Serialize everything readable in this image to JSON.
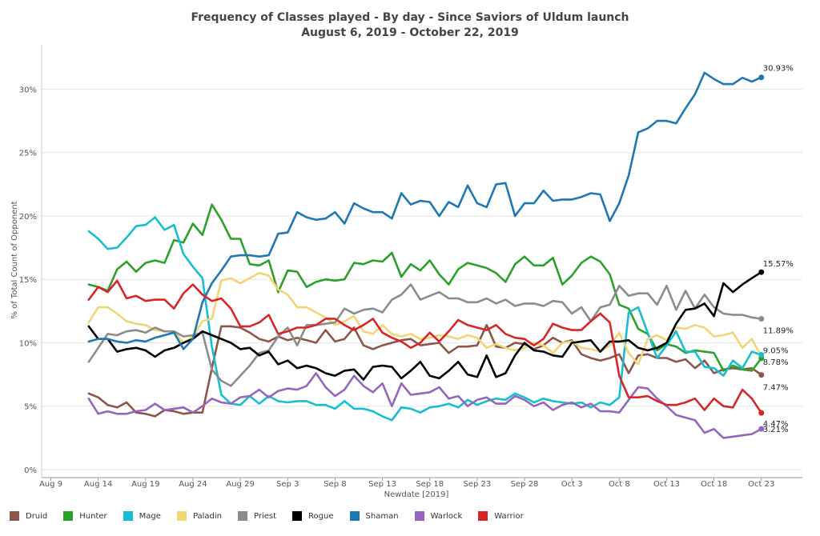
{
  "chart_data": {
    "type": "line",
    "title": "Frequency of Classes played - By day - Since Saviors of Uldum launch",
    "subtitle": "August 6, 2019 - October 22, 2019",
    "xlabel": "Newdate [2019]",
    "ylabel": "% of Total Count of Opponent",
    "x_ticks": [
      "Aug 9",
      "Aug 14",
      "Aug 19",
      "Aug 24",
      "Aug 29",
      "Sep 3",
      "Sep 8",
      "Sep 13",
      "Sep 18",
      "Sep 23",
      "Sep 28",
      "Oct 3",
      "Oct 8",
      "Oct 13",
      "Oct 18",
      "Oct 23"
    ],
    "y_ticks": [
      "0%",
      "5%",
      "10%",
      "15%",
      "20%",
      "25%",
      "30%"
    ],
    "ylim": [
      0,
      33.5
    ],
    "x_start": "Aug 13",
    "x_end": "Oct 22",
    "grid": "horizontal",
    "legend_position": "bottom",
    "series": [
      {
        "name": "Druid",
        "color": "#8c564b",
        "end_label": "7.47%",
        "values": [
          6.0,
          5.7,
          5.1,
          4.9,
          5.3,
          4.5,
          4.4,
          4.2,
          4.7,
          4.6,
          4.4,
          4.5,
          4.5,
          8.0,
          11.3,
          11.3,
          11.2,
          10.8,
          10.3,
          10.1,
          10.5,
          10.2,
          10.4,
          10.2,
          10.0,
          11.0,
          10.1,
          10.3,
          11.2,
          9.8,
          9.5,
          9.8,
          10.0,
          10.2,
          10.3,
          9.8,
          9.9,
          10.0,
          9.2,
          9.7,
          9.7,
          9.8,
          11.4,
          9.7,
          9.6,
          10.0,
          9.9,
          9.5,
          9.8,
          10.4,
          10.0,
          10.2,
          9.1,
          8.8,
          8.6,
          8.8,
          9.1,
          7.6,
          9.0,
          9.1,
          8.8,
          8.8,
          8.5,
          8.7,
          8.0,
          8.6,
          7.6,
          7.9,
          8.0,
          7.9,
          8.0,
          7.47
        ]
      },
      {
        "name": "Hunter",
        "color": "#2ca02c",
        "end_label": "8.78%",
        "values": [
          14.6,
          14.4,
          14.1,
          15.8,
          16.4,
          15.6,
          16.3,
          16.5,
          16.3,
          18.1,
          17.9,
          19.4,
          18.5,
          20.9,
          19.7,
          18.2,
          18.2,
          16.2,
          16.1,
          16.5,
          14.0,
          15.7,
          15.6,
          14.4,
          14.8,
          15.0,
          14.9,
          15.0,
          16.3,
          16.2,
          16.5,
          16.4,
          17.1,
          15.2,
          16.2,
          15.7,
          16.5,
          15.4,
          14.6,
          15.8,
          16.3,
          16.1,
          15.9,
          15.5,
          14.8,
          16.2,
          16.8,
          16.1,
          16.1,
          16.7,
          14.6,
          15.3,
          16.3,
          16.8,
          16.4,
          15.4,
          13.0,
          12.7,
          11.1,
          10.7,
          9.4,
          9.9,
          9.7,
          9.2,
          9.4,
          9.3,
          9.2,
          7.8,
          8.2,
          7.9,
          7.8,
          8.78
        ]
      },
      {
        "name": "Mage",
        "color": "#17becf",
        "end_label": "9.05%",
        "values": [
          18.8,
          18.2,
          17.4,
          17.5,
          18.3,
          19.2,
          19.3,
          19.9,
          18.9,
          19.3,
          17.0,
          16.0,
          15.1,
          9.7,
          5.9,
          5.2,
          5.1,
          5.8,
          5.2,
          5.8,
          5.4,
          5.3,
          5.4,
          5.4,
          5.1,
          5.1,
          4.8,
          5.4,
          4.8,
          4.8,
          4.6,
          4.2,
          3.9,
          4.9,
          4.8,
          4.5,
          4.9,
          5.0,
          5.2,
          4.9,
          5.5,
          5.1,
          5.4,
          5.6,
          5.5,
          6.0,
          5.7,
          5.3,
          5.6,
          5.4,
          5.3,
          5.2,
          5.3,
          4.9,
          5.3,
          5.1,
          5.7,
          12.4,
          12.8,
          10.8,
          8.8,
          9.8,
          10.9,
          9.3,
          9.3,
          8.1,
          8.0,
          7.4,
          8.6,
          8.0,
          9.3,
          9.05
        ]
      },
      {
        "name": "Paladin",
        "color": "#f2d675",
        "end_label": "",
        "values": [
          11.6,
          12.8,
          12.8,
          12.3,
          11.7,
          11.5,
          11.4,
          11.0,
          10.9,
          10.9,
          10.0,
          10.5,
          11.7,
          11.9,
          14.9,
          15.1,
          14.7,
          15.1,
          15.5,
          15.3,
          14.2,
          13.8,
          12.8,
          12.8,
          12.4,
          12.0,
          11.4,
          11.7,
          12.1,
          10.9,
          10.7,
          11.4,
          10.7,
          10.5,
          10.7,
          10.3,
          10.4,
          10.6,
          10.5,
          10.3,
          10.6,
          10.4,
          9.6,
          9.9,
          9.6,
          9.4,
          9.6,
          10.0,
          9.8,
          9.2,
          10.0,
          10.1,
          9.6,
          9.5,
          9.3,
          9.8,
          10.8,
          9.2,
          8.3,
          10.3,
          10.6,
          10.2,
          11.2,
          11.1,
          11.4,
          11.2,
          10.5,
          10.6,
          10.8,
          9.6,
          10.3,
          8.9
        ]
      },
      {
        "name": "Priest",
        "color": "#8c8c8c",
        "end_label": "11.89%",
        "values": [
          8.5,
          9.6,
          10.7,
          10.6,
          10.9,
          11.0,
          10.8,
          11.2,
          10.9,
          10.9,
          10.5,
          10.6,
          10.8,
          7.9,
          7.0,
          6.6,
          7.4,
          8.2,
          9.2,
          9.4,
          10.5,
          11.2,
          9.8,
          11.4,
          11.4,
          11.5,
          11.6,
          12.7,
          12.3,
          12.6,
          12.7,
          12.4,
          13.4,
          13.8,
          14.6,
          13.4,
          13.7,
          14.0,
          13.5,
          13.5,
          13.2,
          13.2,
          13.5,
          13.1,
          13.4,
          12.9,
          13.1,
          13.1,
          12.9,
          13.3,
          13.2,
          12.3,
          12.8,
          11.7,
          12.8,
          13.0,
          14.5,
          13.7,
          13.9,
          13.9,
          13.0,
          14.5,
          12.6,
          14.1,
          12.7,
          13.8,
          12.8,
          12.3,
          12.2,
          12.2,
          12.0,
          11.89
        ]
      },
      {
        "name": "Rogue",
        "color": "#000000",
        "end_label": "15.57%",
        "values": [
          11.3,
          10.3,
          10.3,
          9.3,
          9.5,
          9.6,
          9.4,
          8.9,
          9.4,
          9.6,
          10.0,
          10.3,
          10.9,
          10.6,
          10.3,
          10.0,
          9.5,
          9.6,
          9.0,
          9.3,
          8.3,
          8.6,
          8.0,
          8.2,
          8.0,
          7.6,
          7.4,
          7.8,
          7.9,
          7.1,
          8.1,
          8.2,
          8.1,
          7.2,
          7.8,
          8.5,
          7.4,
          7.2,
          7.8,
          8.5,
          7.5,
          7.3,
          9.0,
          7.3,
          7.6,
          9.0,
          10.0,
          9.4,
          9.3,
          9.0,
          8.9,
          10.0,
          10.1,
          10.2,
          9.3,
          10.1,
          10.1,
          10.2,
          9.6,
          9.4,
          9.6,
          10.0,
          11.5,
          12.6,
          12.7,
          13.1,
          12.1,
          14.7,
          14.0,
          14.6,
          15.1,
          15.57
        ]
      },
      {
        "name": "Shaman",
        "color": "#1f77b4",
        "end_label": "30.93%",
        "values": [
          10.1,
          10.3,
          10.3,
          10.1,
          10.0,
          10.2,
          10.1,
          10.4,
          10.6,
          10.8,
          9.5,
          10.3,
          13.2,
          14.7,
          15.7,
          16.8,
          16.9,
          16.9,
          16.8,
          16.9,
          18.6,
          18.7,
          20.3,
          19.9,
          19.7,
          19.8,
          20.3,
          19.4,
          21.0,
          20.6,
          20.3,
          20.3,
          19.8,
          21.8,
          20.9,
          21.2,
          21.1,
          20.0,
          21.1,
          20.7,
          22.4,
          21.0,
          20.7,
          22.5,
          22.6,
          20.0,
          21.0,
          21.0,
          22.0,
          21.2,
          21.3,
          21.3,
          21.5,
          21.8,
          21.7,
          19.6,
          21.0,
          23.2,
          26.6,
          26.9,
          27.5,
          27.5,
          27.3,
          28.5,
          29.6,
          31.3,
          30.8,
          30.4,
          30.4,
          30.9,
          30.6,
          30.93
        ]
      },
      {
        "name": "Warlock",
        "color": "#9467bd",
        "end_label": "3.21%",
        "values": [
          5.6,
          4.4,
          4.6,
          4.4,
          4.4,
          4.6,
          4.7,
          5.2,
          4.7,
          4.8,
          4.9,
          4.5,
          5.0,
          5.6,
          5.3,
          5.2,
          5.7,
          5.8,
          6.3,
          5.7,
          6.2,
          6.4,
          6.3,
          6.6,
          7.6,
          6.5,
          5.8,
          6.3,
          7.4,
          6.6,
          6.1,
          6.8,
          5.0,
          6.8,
          5.9,
          6.0,
          6.1,
          6.5,
          5.6,
          5.8,
          5.0,
          5.5,
          5.7,
          5.2,
          5.2,
          5.8,
          5.5,
          5.0,
          5.3,
          4.7,
          5.1,
          5.3,
          4.9,
          5.2,
          4.6,
          4.6,
          4.5,
          5.5,
          6.5,
          6.4,
          5.6,
          5.0,
          4.3,
          4.1,
          3.9,
          2.9,
          3.2,
          2.5,
          2.6,
          2.7,
          2.8,
          3.21
        ]
      },
      {
        "name": "Warrior",
        "color": "#d62728",
        "end_label": "4.47%",
        "values": [
          13.4,
          14.4,
          14.0,
          14.9,
          13.5,
          13.7,
          13.3,
          13.4,
          13.4,
          12.7,
          13.9,
          14.6,
          13.8,
          13.3,
          13.5,
          12.7,
          11.3,
          11.3,
          11.6,
          12.2,
          10.7,
          10.9,
          11.2,
          11.2,
          11.4,
          11.9,
          11.9,
          11.4,
          11.0,
          11.4,
          11.9,
          10.8,
          10.4,
          10.1,
          9.6,
          10.0,
          10.8,
          10.1,
          10.9,
          11.8,
          11.4,
          11.2,
          11.0,
          11.4,
          10.7,
          10.4,
          10.3,
          9.8,
          10.3,
          11.5,
          11.2,
          11.0,
          11.0,
          11.7,
          12.3,
          11.6,
          7.4,
          5.7,
          5.7,
          5.8,
          5.4,
          5.1,
          5.1,
          5.3,
          5.6,
          4.7,
          5.6,
          5.0,
          4.9,
          6.3,
          5.6,
          4.47
        ]
      }
    ]
  }
}
